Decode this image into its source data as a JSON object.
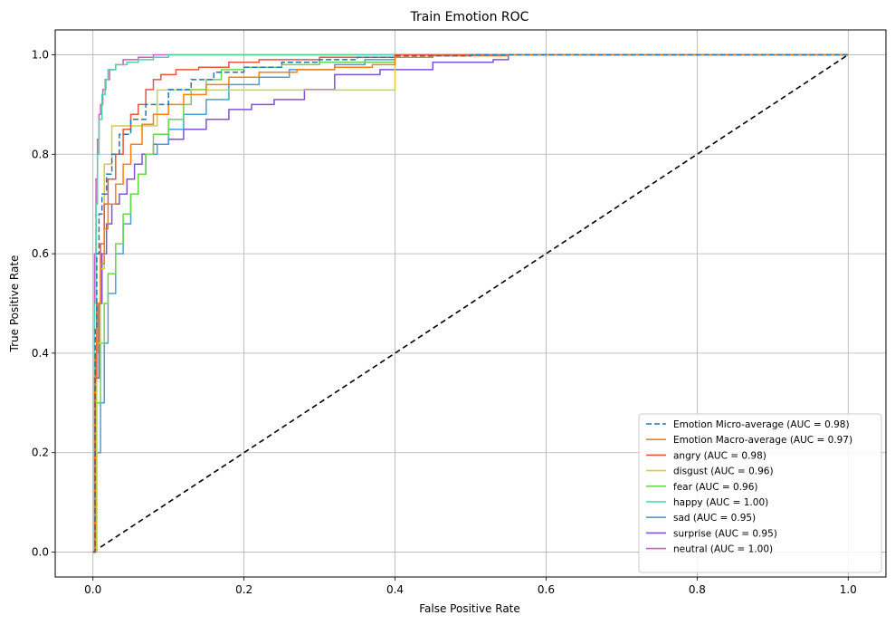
{
  "chart_data": {
    "type": "line",
    "title": "Train Emotion ROC",
    "xlabel": "False Positive Rate",
    "ylabel": "True Positive Rate",
    "xlim": [
      -0.05,
      1.05
    ],
    "ylim": [
      -0.05,
      1.05
    ],
    "xticks": [
      "0.0",
      "0.2",
      "0.4",
      "0.6",
      "0.8",
      "1.0"
    ],
    "yticks": [
      "0.0",
      "0.2",
      "0.4",
      "0.6",
      "0.8",
      "1.0"
    ],
    "grid": true,
    "legend_position": "lower-right",
    "series": [
      {
        "name": "Emotion Micro-average (AUC = 0.98)",
        "color": "#1f77b4",
        "dash": "dashed",
        "x": [
          0,
          0.003,
          0.005,
          0.008,
          0.012,
          0.018,
          0.025,
          0.035,
          0.05,
          0.07,
          0.1,
          0.13,
          0.16,
          0.2,
          0.25,
          0.3,
          0.35,
          0.4,
          0.5,
          1.0
        ],
        "y": [
          0,
          0.45,
          0.6,
          0.68,
          0.72,
          0.76,
          0.8,
          0.84,
          0.87,
          0.9,
          0.93,
          0.95,
          0.965,
          0.975,
          0.985,
          0.99,
          0.995,
          0.998,
          1.0,
          1.0
        ]
      },
      {
        "name": "Emotion Macro-average (AUC = 0.97)",
        "color": "#ff7f0e",
        "dash": "solid",
        "x": [
          0,
          0.003,
          0.006,
          0.01,
          0.015,
          0.02,
          0.03,
          0.04,
          0.05,
          0.065,
          0.08,
          0.1,
          0.12,
          0.15,
          0.18,
          0.22,
          0.27,
          0.32,
          0.37,
          0.4,
          0.45,
          0.55,
          1.0
        ],
        "y": [
          0,
          0.4,
          0.5,
          0.58,
          0.65,
          0.7,
          0.74,
          0.78,
          0.82,
          0.86,
          0.88,
          0.9,
          0.92,
          0.94,
          0.955,
          0.965,
          0.97,
          0.975,
          0.98,
          0.995,
          0.998,
          1.0,
          1.0
        ]
      },
      {
        "name": "angry (AUC = 0.98)",
        "color": "#e8553d",
        "dash": "solid",
        "x": [
          0,
          0.002,
          0.005,
          0.01,
          0.015,
          0.02,
          0.03,
          0.04,
          0.05,
          0.06,
          0.07,
          0.08,
          0.09,
          0.11,
          0.14,
          0.18,
          0.22,
          0.3,
          0.4,
          1.0
        ],
        "y": [
          0,
          0.35,
          0.5,
          0.62,
          0.7,
          0.75,
          0.8,
          0.85,
          0.88,
          0.9,
          0.93,
          0.95,
          0.96,
          0.97,
          0.975,
          0.985,
          0.99,
          0.995,
          1.0,
          1.0
        ]
      },
      {
        "name": "disgust (AUC = 0.96)",
        "color": "#d4cf3b",
        "dash": "solid",
        "x": [
          0,
          0.005,
          0.01,
          0.015,
          0.02,
          0.025,
          0.083,
          0.085,
          0.125,
          0.13,
          0.395,
          0.4,
          1.0
        ],
        "y": [
          0,
          0.42,
          0.57,
          0.78,
          0.78,
          0.857,
          0.857,
          0.929,
          0.929,
          0.929,
          0.929,
          1.0,
          1.0
        ]
      },
      {
        "name": "fear (AUC = 0.96)",
        "color": "#6ad64c",
        "dash": "solid",
        "x": [
          0,
          0.005,
          0.01,
          0.015,
          0.02,
          0.03,
          0.04,
          0.05,
          0.06,
          0.07,
          0.08,
          0.1,
          0.12,
          0.13,
          0.15,
          0.17,
          0.2,
          0.25,
          0.3,
          0.4,
          1.0
        ],
        "y": [
          0,
          0.3,
          0.42,
          0.5,
          0.56,
          0.62,
          0.68,
          0.72,
          0.76,
          0.8,
          0.84,
          0.87,
          0.9,
          0.93,
          0.95,
          0.97,
          0.975,
          0.98,
          0.985,
          1.0,
          1.0
        ]
      },
      {
        "name": "happy (AUC = 1.00)",
        "color": "#4fd4a6",
        "dash": "solid",
        "x": [
          0,
          0.002,
          0.004,
          0.006,
          0.008,
          0.012,
          0.016,
          0.02,
          0.03,
          0.045,
          0.06,
          0.08,
          0.1,
          1.0
        ],
        "y": [
          0,
          0.5,
          0.7,
          0.8,
          0.87,
          0.92,
          0.95,
          0.97,
          0.98,
          0.985,
          0.99,
          0.995,
          1.0,
          1.0
        ]
      },
      {
        "name": "sad (AUC = 0.95)",
        "color": "#4a9ed6",
        "dash": "solid",
        "x": [
          0,
          0.005,
          0.01,
          0.015,
          0.02,
          0.03,
          0.04,
          0.05,
          0.06,
          0.07,
          0.085,
          0.1,
          0.12,
          0.15,
          0.18,
          0.22,
          0.26,
          0.32,
          0.36,
          0.4,
          1.0
        ],
        "y": [
          0,
          0.2,
          0.3,
          0.42,
          0.52,
          0.6,
          0.66,
          0.72,
          0.76,
          0.8,
          0.82,
          0.85,
          0.88,
          0.91,
          0.94,
          0.955,
          0.97,
          0.98,
          0.99,
          1.0,
          1.0
        ]
      },
      {
        "name": "surprise (AUC = 0.95)",
        "color": "#8052d9",
        "dash": "solid",
        "x": [
          0,
          0.004,
          0.008,
          0.012,
          0.018,
          0.025,
          0.035,
          0.045,
          0.055,
          0.065,
          0.08,
          0.1,
          0.12,
          0.15,
          0.18,
          0.21,
          0.24,
          0.28,
          0.32,
          0.38,
          0.45,
          0.53,
          0.55,
          1.0
        ],
        "y": [
          0,
          0.35,
          0.5,
          0.6,
          0.66,
          0.7,
          0.72,
          0.75,
          0.78,
          0.8,
          0.82,
          0.83,
          0.85,
          0.87,
          0.89,
          0.9,
          0.91,
          0.93,
          0.96,
          0.97,
          0.985,
          0.99,
          1.0,
          1.0
        ]
      },
      {
        "name": "neutral (AUC = 1.00)",
        "color": "#d658c9",
        "dash": "solid",
        "x": [
          0,
          0.002,
          0.004,
          0.006,
          0.008,
          0.01,
          0.013,
          0.017,
          0.022,
          0.03,
          0.04,
          0.06,
          0.08,
          1.0
        ],
        "y": [
          0,
          0.6,
          0.75,
          0.83,
          0.88,
          0.9,
          0.93,
          0.95,
          0.97,
          0.98,
          0.99,
          0.995,
          1.0,
          1.0
        ]
      }
    ],
    "reference_line": {
      "color": "#000000",
      "dash": "dashed",
      "x": [
        0,
        1
      ],
      "y": [
        0,
        1
      ]
    }
  }
}
